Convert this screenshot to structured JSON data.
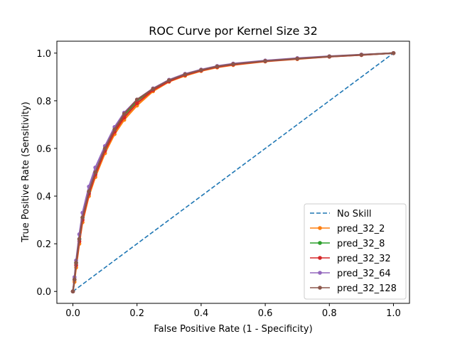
{
  "chart_data": {
    "type": "line",
    "title": "ROC Curve por Kernel Size 32",
    "xlabel": "False Positive Rate (1 - Specificity)",
    "ylabel": "True Positive Rate (Sensitivity)",
    "xlim": [
      -0.05,
      1.05
    ],
    "ylim": [
      -0.05,
      1.05
    ],
    "xticks": [
      "0.0",
      "0.2",
      "0.4",
      "0.6",
      "0.8",
      "1.0"
    ],
    "yticks": [
      "0.0",
      "0.2",
      "0.4",
      "0.6",
      "0.8",
      "1.0"
    ],
    "grid": false,
    "legend_position": "lower-right",
    "series": [
      {
        "name": "No Skill",
        "style": "dashed",
        "color": "#1f77b4",
        "x": [
          0,
          1
        ],
        "y": [
          0,
          1
        ]
      },
      {
        "name": "pred_32_2",
        "style": "marker-line",
        "color": "#ff7f0e",
        "x": [
          0,
          0.005,
          0.01,
          0.02,
          0.03,
          0.05,
          0.07,
          0.1,
          0.13,
          0.16,
          0.2,
          0.25,
          0.3,
          0.35,
          0.4,
          0.45,
          0.5,
          0.6,
          0.7,
          0.8,
          0.9,
          1.0
        ],
        "y": [
          0,
          0.04,
          0.1,
          0.2,
          0.29,
          0.4,
          0.48,
          0.58,
          0.66,
          0.72,
          0.78,
          0.84,
          0.88,
          0.905,
          0.925,
          0.94,
          0.95,
          0.965,
          0.975,
          0.985,
          0.992,
          1.0
        ]
      },
      {
        "name": "pred_32_8",
        "style": "marker-line",
        "color": "#2ca02c",
        "x": [
          0,
          0.005,
          0.01,
          0.02,
          0.03,
          0.05,
          0.07,
          0.1,
          0.13,
          0.16,
          0.2,
          0.25,
          0.3,
          0.35,
          0.4,
          0.45,
          0.5,
          0.6,
          0.7,
          0.8,
          0.9,
          1.0
        ],
        "y": [
          0,
          0.05,
          0.12,
          0.22,
          0.31,
          0.42,
          0.5,
          0.6,
          0.68,
          0.74,
          0.8,
          0.85,
          0.885,
          0.91,
          0.928,
          0.943,
          0.953,
          0.967,
          0.977,
          0.986,
          0.993,
          1.0
        ]
      },
      {
        "name": "pred_32_32",
        "style": "marker-line",
        "color": "#d62728",
        "x": [
          0,
          0.005,
          0.01,
          0.02,
          0.03,
          0.05,
          0.07,
          0.1,
          0.13,
          0.16,
          0.2,
          0.25,
          0.3,
          0.35,
          0.4,
          0.45,
          0.5,
          0.6,
          0.7,
          0.8,
          0.9,
          1.0
        ],
        "y": [
          0,
          0.05,
          0.11,
          0.21,
          0.3,
          0.41,
          0.49,
          0.59,
          0.67,
          0.73,
          0.79,
          0.845,
          0.882,
          0.908,
          0.927,
          0.942,
          0.952,
          0.966,
          0.976,
          0.985,
          0.992,
          1.0
        ]
      },
      {
        "name": "pred_32_64",
        "style": "marker-line",
        "color": "#9467bd",
        "x": [
          0,
          0.005,
          0.01,
          0.02,
          0.03,
          0.05,
          0.07,
          0.1,
          0.13,
          0.16,
          0.2,
          0.25,
          0.3,
          0.35,
          0.4,
          0.45,
          0.5,
          0.6,
          0.7,
          0.8,
          0.9,
          1.0
        ],
        "y": [
          0,
          0.06,
          0.13,
          0.24,
          0.33,
          0.44,
          0.52,
          0.61,
          0.69,
          0.75,
          0.805,
          0.852,
          0.888,
          0.913,
          0.931,
          0.946,
          0.956,
          0.969,
          0.979,
          0.987,
          0.994,
          1.0
        ]
      },
      {
        "name": "pred_32_128",
        "style": "marker-line",
        "color": "#8c564b",
        "x": [
          0,
          0.005,
          0.01,
          0.02,
          0.03,
          0.05,
          0.07,
          0.1,
          0.13,
          0.16,
          0.2,
          0.25,
          0.3,
          0.35,
          0.4,
          0.45,
          0.5,
          0.6,
          0.7,
          0.8,
          0.9,
          1.0
        ],
        "y": [
          0,
          0.05,
          0.12,
          0.22,
          0.31,
          0.42,
          0.5,
          0.6,
          0.68,
          0.745,
          0.805,
          0.85,
          0.886,
          0.911,
          0.929,
          0.944,
          0.954,
          0.967,
          0.977,
          0.986,
          0.993,
          1.0
        ]
      }
    ]
  }
}
